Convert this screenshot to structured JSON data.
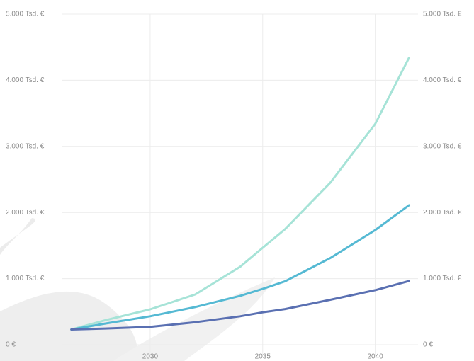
{
  "chart_data": {
    "type": "line",
    "x": [
      2026.5,
      2028,
      2030,
      2032,
      2034,
      2035,
      2036,
      2038,
      2040,
      2041.5
    ],
    "series": [
      {
        "color": "#a6e3d7",
        "values": [
          230,
          370,
          535,
          760,
          1180,
          1467,
          1750,
          2450,
          3340,
          4340
        ]
      },
      {
        "color": "#55b9d3",
        "values": [
          230,
          320,
          430,
          570,
          740,
          845,
          960,
          1310,
          1735,
          2110
        ]
      },
      {
        "color": "#5a70b2",
        "values": [
          230,
          245,
          270,
          340,
          430,
          490,
          540,
          680,
          825,
          965
        ]
      }
    ],
    "xlim": [
      2026.1,
      2041.9
    ],
    "xticks": [
      2030,
      2035,
      2040
    ],
    "ylim": [
      0,
      5000
    ],
    "yticks": [
      {
        "value": 0,
        "label": "0 €"
      },
      {
        "value": 1000,
        "label": "1.000 Tsd. €"
      },
      {
        "value": 2000,
        "label": "2.000 Tsd. €"
      },
      {
        "value": 3000,
        "label": "3.000 Tsd. €"
      },
      {
        "value": 4000,
        "label": "4.000 Tsd. €"
      },
      {
        "value": 5000,
        "label": "5.000 Tsd. €"
      }
    ],
    "grid": true
  }
}
